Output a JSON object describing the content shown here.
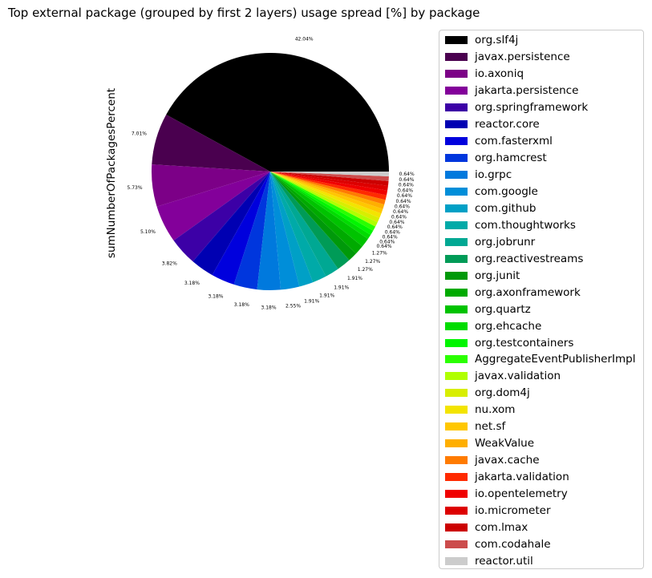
{
  "chart_data": {
    "type": "pie",
    "title": "Top external package (grouped by first 2 layers) usage spread [%] by package",
    "ylabel": "sumNumberOfPackagesPercent",
    "legend_position": "right",
    "slices": [
      {
        "label": "org.slf4j",
        "value": 42.04,
        "display": "42.04%",
        "color": "#000000"
      },
      {
        "label": "javax.persistence",
        "value": 7.01,
        "display": "7.01%",
        "color": "#4a004f"
      },
      {
        "label": "io.axoniq",
        "value": 5.73,
        "display": "5.73%",
        "color": "#7c0087"
      },
      {
        "label": "jakarta.persistence",
        "value": 5.1,
        "display": "5.10%",
        "color": "#83009a"
      },
      {
        "label": "org.springframework",
        "value": 3.82,
        "display": "3.82%",
        "color": "#3c00a6"
      },
      {
        "label": "reactor.core",
        "value": 3.18,
        "display": "3.18%",
        "color": "#0000b2"
      },
      {
        "label": "com.fasterxml",
        "value": 3.18,
        "display": "3.18%",
        "color": "#0000dd"
      },
      {
        "label": "org.hamcrest",
        "value": 3.18,
        "display": "3.18%",
        "color": "#0036dd"
      },
      {
        "label": "io.grpc",
        "value": 3.18,
        "display": "3.18%",
        "color": "#0079dd"
      },
      {
        "label": "com.google",
        "value": 2.55,
        "display": "2.55%",
        "color": "#008ed9"
      },
      {
        "label": "com.github",
        "value": 1.91,
        "display": "1.91%",
        "color": "#00a0c6"
      },
      {
        "label": "com.thoughtworks",
        "value": 1.91,
        "display": "1.91%",
        "color": "#00aaa8"
      },
      {
        "label": "org.jobrunr",
        "value": 1.91,
        "display": "1.91%",
        "color": "#00a893"
      },
      {
        "label": "org.reactivestreams",
        "value": 1.91,
        "display": "1.91%",
        "color": "#009b57"
      },
      {
        "label": "org.junit",
        "value": 1.27,
        "display": "1.27%",
        "color": "#00990a"
      },
      {
        "label": "org.axonframework",
        "value": 1.27,
        "display": "1.27%",
        "color": "#00aa00"
      },
      {
        "label": "org.quartz",
        "value": 1.27,
        "display": "1.27%",
        "color": "#00c300"
      },
      {
        "label": "org.ehcache",
        "value": 0.64,
        "display": "0.64%",
        "color": "#00dc00"
      },
      {
        "label": "org.testcontainers",
        "value": 0.64,
        "display": "0.64%",
        "color": "#00f500"
      },
      {
        "label": "AggregateEventPublisherImpl",
        "value": 0.64,
        "display": "0.64%",
        "color": "#2aff00"
      },
      {
        "label": "javax.validation",
        "value": 0.64,
        "display": "0.64%",
        "color": "#b0ff00"
      },
      {
        "label": "org.dom4j",
        "value": 0.64,
        "display": "0.64%",
        "color": "#d8ee00"
      },
      {
        "label": "nu.xom",
        "value": 0.64,
        "display": "0.64%",
        "color": "#f3e400"
      },
      {
        "label": "net.sf",
        "value": 0.64,
        "display": "0.64%",
        "color": "#ffc700"
      },
      {
        "label": "WeakValue",
        "value": 0.64,
        "display": "0.64%",
        "color": "#ffaf00"
      },
      {
        "label": "javax.cache",
        "value": 0.64,
        "display": "0.64%",
        "color": "#ff7b00"
      },
      {
        "label": "jakarta.validation",
        "value": 0.64,
        "display": "0.64%",
        "color": "#ff2a00"
      },
      {
        "label": "io.opentelemetry",
        "value": 0.64,
        "display": "0.64%",
        "color": "#f00000"
      },
      {
        "label": "io.micrometer",
        "value": 0.64,
        "display": "0.64%",
        "color": "#dd0000"
      },
      {
        "label": "com.lmax",
        "value": 0.64,
        "display": "0.64%",
        "color": "#cc0000"
      },
      {
        "label": "com.codahale",
        "value": 0.64,
        "display": "0.64%",
        "color": "#cc4c4c"
      },
      {
        "label": "reactor.util",
        "value": 0.64,
        "display": "0.64%",
        "color": "#cccccc"
      }
    ]
  }
}
